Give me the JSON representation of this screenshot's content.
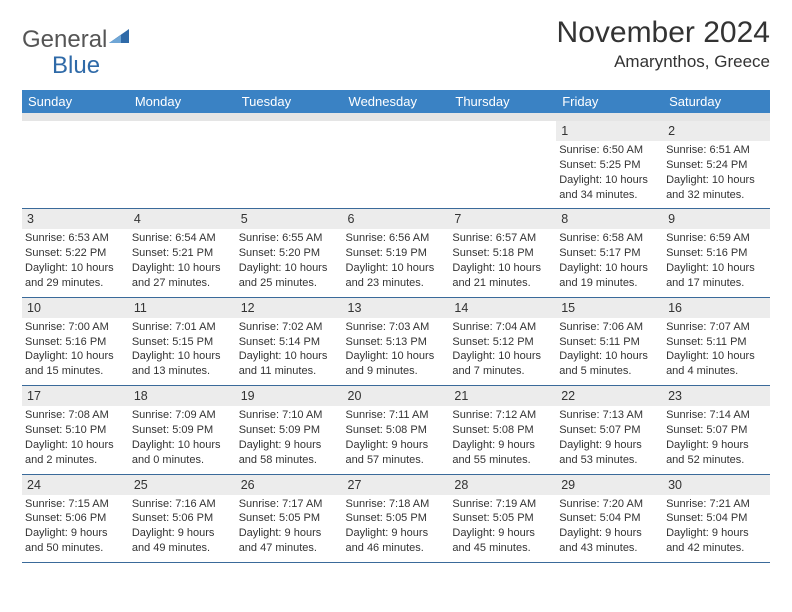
{
  "brand": {
    "part1": "General",
    "part2": "Blue"
  },
  "title": "November 2024",
  "location": "Amarynthos, Greece",
  "colors": {
    "header_bg": "#3a82c4",
    "header_text": "#ffffff",
    "row_divider": "#3a6a9a",
    "daynum_bg": "#ececec",
    "spacer_bg": "#e5e5e5",
    "logo_gray": "#555555",
    "logo_blue": "#2f6aa8",
    "text": "#333333"
  },
  "day_headers": [
    "Sunday",
    "Monday",
    "Tuesday",
    "Wednesday",
    "Thursday",
    "Friday",
    "Saturday"
  ],
  "weeks": [
    [
      {
        "n": "",
        "sr": "",
        "ss": "",
        "dl": ""
      },
      {
        "n": "",
        "sr": "",
        "ss": "",
        "dl": ""
      },
      {
        "n": "",
        "sr": "",
        "ss": "",
        "dl": ""
      },
      {
        "n": "",
        "sr": "",
        "ss": "",
        "dl": ""
      },
      {
        "n": "",
        "sr": "",
        "ss": "",
        "dl": ""
      },
      {
        "n": "1",
        "sr": "Sunrise: 6:50 AM",
        "ss": "Sunset: 5:25 PM",
        "dl": "Daylight: 10 hours and 34 minutes."
      },
      {
        "n": "2",
        "sr": "Sunrise: 6:51 AM",
        "ss": "Sunset: 5:24 PM",
        "dl": "Daylight: 10 hours and 32 minutes."
      }
    ],
    [
      {
        "n": "3",
        "sr": "Sunrise: 6:53 AM",
        "ss": "Sunset: 5:22 PM",
        "dl": "Daylight: 10 hours and 29 minutes."
      },
      {
        "n": "4",
        "sr": "Sunrise: 6:54 AM",
        "ss": "Sunset: 5:21 PM",
        "dl": "Daylight: 10 hours and 27 minutes."
      },
      {
        "n": "5",
        "sr": "Sunrise: 6:55 AM",
        "ss": "Sunset: 5:20 PM",
        "dl": "Daylight: 10 hours and 25 minutes."
      },
      {
        "n": "6",
        "sr": "Sunrise: 6:56 AM",
        "ss": "Sunset: 5:19 PM",
        "dl": "Daylight: 10 hours and 23 minutes."
      },
      {
        "n": "7",
        "sr": "Sunrise: 6:57 AM",
        "ss": "Sunset: 5:18 PM",
        "dl": "Daylight: 10 hours and 21 minutes."
      },
      {
        "n": "8",
        "sr": "Sunrise: 6:58 AM",
        "ss": "Sunset: 5:17 PM",
        "dl": "Daylight: 10 hours and 19 minutes."
      },
      {
        "n": "9",
        "sr": "Sunrise: 6:59 AM",
        "ss": "Sunset: 5:16 PM",
        "dl": "Daylight: 10 hours and 17 minutes."
      }
    ],
    [
      {
        "n": "10",
        "sr": "Sunrise: 7:00 AM",
        "ss": "Sunset: 5:16 PM",
        "dl": "Daylight: 10 hours and 15 minutes."
      },
      {
        "n": "11",
        "sr": "Sunrise: 7:01 AM",
        "ss": "Sunset: 5:15 PM",
        "dl": "Daylight: 10 hours and 13 minutes."
      },
      {
        "n": "12",
        "sr": "Sunrise: 7:02 AM",
        "ss": "Sunset: 5:14 PM",
        "dl": "Daylight: 10 hours and 11 minutes."
      },
      {
        "n": "13",
        "sr": "Sunrise: 7:03 AM",
        "ss": "Sunset: 5:13 PM",
        "dl": "Daylight: 10 hours and 9 minutes."
      },
      {
        "n": "14",
        "sr": "Sunrise: 7:04 AM",
        "ss": "Sunset: 5:12 PM",
        "dl": "Daylight: 10 hours and 7 minutes."
      },
      {
        "n": "15",
        "sr": "Sunrise: 7:06 AM",
        "ss": "Sunset: 5:11 PM",
        "dl": "Daylight: 10 hours and 5 minutes."
      },
      {
        "n": "16",
        "sr": "Sunrise: 7:07 AM",
        "ss": "Sunset: 5:11 PM",
        "dl": "Daylight: 10 hours and 4 minutes."
      }
    ],
    [
      {
        "n": "17",
        "sr": "Sunrise: 7:08 AM",
        "ss": "Sunset: 5:10 PM",
        "dl": "Daylight: 10 hours and 2 minutes."
      },
      {
        "n": "18",
        "sr": "Sunrise: 7:09 AM",
        "ss": "Sunset: 5:09 PM",
        "dl": "Daylight: 10 hours and 0 minutes."
      },
      {
        "n": "19",
        "sr": "Sunrise: 7:10 AM",
        "ss": "Sunset: 5:09 PM",
        "dl": "Daylight: 9 hours and 58 minutes."
      },
      {
        "n": "20",
        "sr": "Sunrise: 7:11 AM",
        "ss": "Sunset: 5:08 PM",
        "dl": "Daylight: 9 hours and 57 minutes."
      },
      {
        "n": "21",
        "sr": "Sunrise: 7:12 AM",
        "ss": "Sunset: 5:08 PM",
        "dl": "Daylight: 9 hours and 55 minutes."
      },
      {
        "n": "22",
        "sr": "Sunrise: 7:13 AM",
        "ss": "Sunset: 5:07 PM",
        "dl": "Daylight: 9 hours and 53 minutes."
      },
      {
        "n": "23",
        "sr": "Sunrise: 7:14 AM",
        "ss": "Sunset: 5:07 PM",
        "dl": "Daylight: 9 hours and 52 minutes."
      }
    ],
    [
      {
        "n": "24",
        "sr": "Sunrise: 7:15 AM",
        "ss": "Sunset: 5:06 PM",
        "dl": "Daylight: 9 hours and 50 minutes."
      },
      {
        "n": "25",
        "sr": "Sunrise: 7:16 AM",
        "ss": "Sunset: 5:06 PM",
        "dl": "Daylight: 9 hours and 49 minutes."
      },
      {
        "n": "26",
        "sr": "Sunrise: 7:17 AM",
        "ss": "Sunset: 5:05 PM",
        "dl": "Daylight: 9 hours and 47 minutes."
      },
      {
        "n": "27",
        "sr": "Sunrise: 7:18 AM",
        "ss": "Sunset: 5:05 PM",
        "dl": "Daylight: 9 hours and 46 minutes."
      },
      {
        "n": "28",
        "sr": "Sunrise: 7:19 AM",
        "ss": "Sunset: 5:05 PM",
        "dl": "Daylight: 9 hours and 45 minutes."
      },
      {
        "n": "29",
        "sr": "Sunrise: 7:20 AM",
        "ss": "Sunset: 5:04 PM",
        "dl": "Daylight: 9 hours and 43 minutes."
      },
      {
        "n": "30",
        "sr": "Sunrise: 7:21 AM",
        "ss": "Sunset: 5:04 PM",
        "dl": "Daylight: 9 hours and 42 minutes."
      }
    ]
  ]
}
